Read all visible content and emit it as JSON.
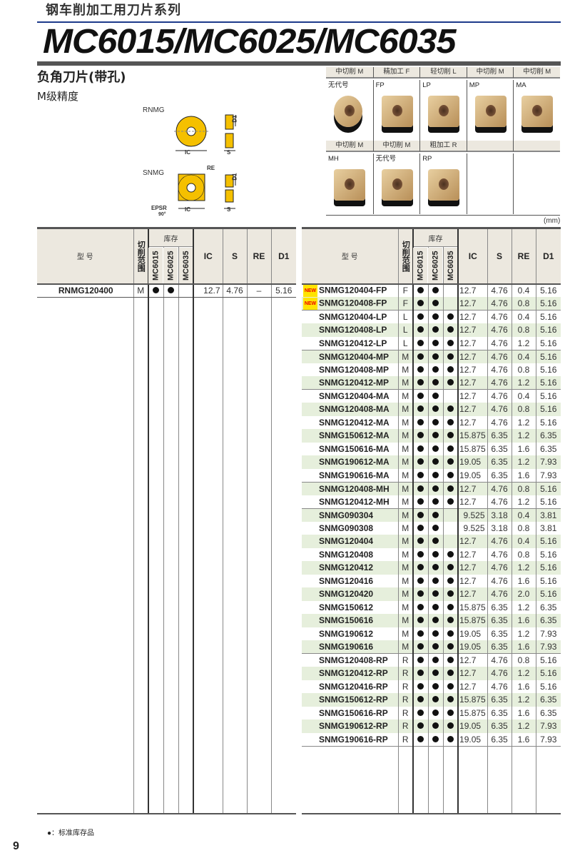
{
  "header": {
    "series": "钢车削加工用刀片系列",
    "title": "MC6015/MC6025/MC6035"
  },
  "category": {
    "title": "负角刀片(带孔)",
    "grade": "M级精度"
  },
  "diagrams": {
    "rnmg": {
      "name": "RNMG",
      "ic": "IC",
      "s": "S",
      "d1": "D1"
    },
    "snmg": {
      "name": "SNMG",
      "ic": "IC",
      "s": "S",
      "d1": "D1",
      "re": "RE",
      "epsr": "EPSR",
      "angle": "90°"
    }
  },
  "chipbreakers": [
    {
      "range": "中切削 M",
      "code": "无代号"
    },
    {
      "range": "精加工 F",
      "code": "FP"
    },
    {
      "range": "轻切削 L",
      "code": "LP"
    },
    {
      "range": "中切削 M",
      "code": "MP"
    },
    {
      "range": "中切削 M",
      "code": "MA"
    },
    {
      "range": "中切削 M",
      "code": "MH"
    },
    {
      "range": "中切削 M",
      "code": "无代号"
    },
    {
      "range": "粗加工 R",
      "code": "RP"
    },
    {
      "range": "",
      "code": ""
    },
    {
      "range": "",
      "code": ""
    }
  ],
  "unit": "(mm)",
  "table_headers": {
    "model": "型 号",
    "range": "切削范围",
    "stock": "库存",
    "grades": [
      "MC6015",
      "MC6025",
      "MC6035"
    ],
    "ic": "IC",
    "s": "S",
    "re": "RE",
    "d1": "D1"
  },
  "new_badge": "NEW",
  "stock_mark": "●",
  "left_rows": [
    {
      "model": "RNMG120400",
      "range": "M",
      "stock": [
        1,
        1,
        0
      ],
      "ic": "12.7",
      "s": "4.76",
      "re": "–",
      "d1": "5.16"
    }
  ],
  "right_rows": [
    {
      "model": "SNMG120404-FP",
      "new": true,
      "range": "F",
      "stock": [
        1,
        1,
        0
      ],
      "ic": "12.7",
      "s": "4.76",
      "re": "0.4",
      "d1": "5.16"
    },
    {
      "model": "SNMG120408-FP",
      "new": true,
      "range": "F",
      "stock": [
        1,
        1,
        0
      ],
      "ic": "12.7",
      "s": "4.76",
      "re": "0.8",
      "d1": "5.16"
    },
    {
      "model": "SNMG120404-LP",
      "range": "L",
      "stock": [
        1,
        1,
        1
      ],
      "ic": "12.7",
      "s": "4.76",
      "re": "0.4",
      "d1": "5.16"
    },
    {
      "model": "SNMG120408-LP",
      "range": "L",
      "stock": [
        1,
        1,
        1
      ],
      "ic": "12.7",
      "s": "4.76",
      "re": "0.8",
      "d1": "5.16"
    },
    {
      "model": "SNMG120412-LP",
      "range": "L",
      "stock": [
        1,
        1,
        1
      ],
      "ic": "12.7",
      "s": "4.76",
      "re": "1.2",
      "d1": "5.16"
    },
    {
      "model": "SNMG120404-MP",
      "range": "M",
      "stock": [
        1,
        1,
        1
      ],
      "ic": "12.7",
      "s": "4.76",
      "re": "0.4",
      "d1": "5.16"
    },
    {
      "model": "SNMG120408-MP",
      "range": "M",
      "stock": [
        1,
        1,
        1
      ],
      "ic": "12.7",
      "s": "4.76",
      "re": "0.8",
      "d1": "5.16"
    },
    {
      "model": "SNMG120412-MP",
      "range": "M",
      "stock": [
        1,
        1,
        1
      ],
      "ic": "12.7",
      "s": "4.76",
      "re": "1.2",
      "d1": "5.16"
    },
    {
      "model": "SNMG120404-MA",
      "range": "M",
      "stock": [
        1,
        1,
        0
      ],
      "ic": "12.7",
      "s": "4.76",
      "re": "0.4",
      "d1": "5.16"
    },
    {
      "model": "SNMG120408-MA",
      "range": "M",
      "stock": [
        1,
        1,
        1
      ],
      "ic": "12.7",
      "s": "4.76",
      "re": "0.8",
      "d1": "5.16"
    },
    {
      "model": "SNMG120412-MA",
      "range": "M",
      "stock": [
        1,
        1,
        1
      ],
      "ic": "12.7",
      "s": "4.76",
      "re": "1.2",
      "d1": "5.16"
    },
    {
      "model": "SNMG150612-MA",
      "range": "M",
      "stock": [
        1,
        1,
        1
      ],
      "ic": "15.875",
      "s": "6.35",
      "re": "1.2",
      "d1": "6.35"
    },
    {
      "model": "SNMG150616-MA",
      "range": "M",
      "stock": [
        1,
        1,
        1
      ],
      "ic": "15.875",
      "s": "6.35",
      "re": "1.6",
      "d1": "6.35"
    },
    {
      "model": "SNMG190612-MA",
      "range": "M",
      "stock": [
        1,
        1,
        1
      ],
      "ic": "19.05",
      "s": "6.35",
      "re": "1.2",
      "d1": "7.93"
    },
    {
      "model": "SNMG190616-MA",
      "range": "M",
      "stock": [
        1,
        1,
        1
      ],
      "ic": "19.05",
      "s": "6.35",
      "re": "1.6",
      "d1": "7.93"
    },
    {
      "model": "SNMG120408-MH",
      "range": "M",
      "stock": [
        1,
        1,
        1
      ],
      "ic": "12.7",
      "s": "4.76",
      "re": "0.8",
      "d1": "5.16"
    },
    {
      "model": "SNMG120412-MH",
      "range": "M",
      "stock": [
        1,
        1,
        1
      ],
      "ic": "12.7",
      "s": "4.76",
      "re": "1.2",
      "d1": "5.16"
    },
    {
      "model": "SNMG090304",
      "range": "M",
      "stock": [
        1,
        1,
        0
      ],
      "ic": "9.525",
      "s": "3.18",
      "re": "0.4",
      "d1": "3.81"
    },
    {
      "model": "SNMG090308",
      "range": "M",
      "stock": [
        1,
        1,
        0
      ],
      "ic": "9.525",
      "s": "3.18",
      "re": "0.8",
      "d1": "3.81"
    },
    {
      "model": "SNMG120404",
      "range": "M",
      "stock": [
        1,
        1,
        0
      ],
      "ic": "12.7",
      "s": "4.76",
      "re": "0.4",
      "d1": "5.16"
    },
    {
      "model": "SNMG120408",
      "range": "M",
      "stock": [
        1,
        1,
        1
      ],
      "ic": "12.7",
      "s": "4.76",
      "re": "0.8",
      "d1": "5.16"
    },
    {
      "model": "SNMG120412",
      "range": "M",
      "stock": [
        1,
        1,
        1
      ],
      "ic": "12.7",
      "s": "4.76",
      "re": "1.2",
      "d1": "5.16"
    },
    {
      "model": "SNMG120416",
      "range": "M",
      "stock": [
        1,
        1,
        1
      ],
      "ic": "12.7",
      "s": "4.76",
      "re": "1.6",
      "d1": "5.16"
    },
    {
      "model": "SNMG120420",
      "range": "M",
      "stock": [
        1,
        1,
        1
      ],
      "ic": "12.7",
      "s": "4.76",
      "re": "2.0",
      "d1": "5.16"
    },
    {
      "model": "SNMG150612",
      "range": "M",
      "stock": [
        1,
        1,
        1
      ],
      "ic": "15.875",
      "s": "6.35",
      "re": "1.2",
      "d1": "6.35"
    },
    {
      "model": "SNMG150616",
      "range": "M",
      "stock": [
        1,
        1,
        1
      ],
      "ic": "15.875",
      "s": "6.35",
      "re": "1.6",
      "d1": "6.35"
    },
    {
      "model": "SNMG190612",
      "range": "M",
      "stock": [
        1,
        1,
        1
      ],
      "ic": "19.05",
      "s": "6.35",
      "re": "1.2",
      "d1": "7.93"
    },
    {
      "model": "SNMG190616",
      "range": "M",
      "stock": [
        1,
        1,
        1
      ],
      "ic": "19.05",
      "s": "6.35",
      "re": "1.6",
      "d1": "7.93"
    },
    {
      "model": "SNMG120408-RP",
      "range": "R",
      "stock": [
        1,
        1,
        1
      ],
      "ic": "12.7",
      "s": "4.76",
      "re": "0.8",
      "d1": "5.16"
    },
    {
      "model": "SNMG120412-RP",
      "range": "R",
      "stock": [
        1,
        1,
        1
      ],
      "ic": "12.7",
      "s": "4.76",
      "re": "1.2",
      "d1": "5.16"
    },
    {
      "model": "SNMG120416-RP",
      "range": "R",
      "stock": [
        1,
        1,
        1
      ],
      "ic": "12.7",
      "s": "4.76",
      "re": "1.6",
      "d1": "5.16"
    },
    {
      "model": "SNMG150612-RP",
      "range": "R",
      "stock": [
        1,
        1,
        1
      ],
      "ic": "15.875",
      "s": "6.35",
      "re": "1.2",
      "d1": "6.35"
    },
    {
      "model": "SNMG150616-RP",
      "range": "R",
      "stock": [
        1,
        1,
        1
      ],
      "ic": "15.875",
      "s": "6.35",
      "re": "1.6",
      "d1": "6.35"
    },
    {
      "model": "SNMG190612-RP",
      "range": "R",
      "stock": [
        1,
        1,
        1
      ],
      "ic": "19.05",
      "s": "6.35",
      "re": "1.2",
      "d1": "7.93"
    },
    {
      "model": "SNMG190616-RP",
      "range": "R",
      "stock": [
        1,
        1,
        1
      ],
      "ic": "19.05",
      "s": "6.35",
      "re": "1.6",
      "d1": "7.93"
    }
  ],
  "footer": {
    "legend": "●：标准库存品",
    "page": "9"
  },
  "colors": {
    "insert_yellow": "#f5c000",
    "row_green": "#e6efdc",
    "header_beige": "#ece8df",
    "title_rule": "#1d3a8a",
    "new_badge": "#ffe400"
  }
}
